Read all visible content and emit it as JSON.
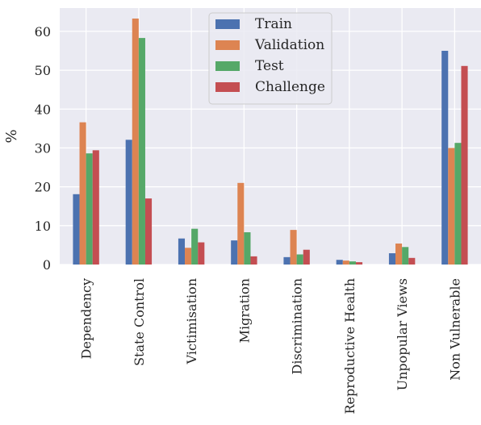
{
  "chart_data": {
    "type": "bar",
    "ylabel": "%",
    "xlabel": "",
    "ylim": [
      0,
      66
    ],
    "yticks": [
      0,
      10,
      20,
      30,
      40,
      50,
      60
    ],
    "grid": true,
    "legend_position": "top-center",
    "categories": [
      "Dependency",
      "State Control",
      "Victimisation",
      "Migration",
      "Discrimination",
      "Reproductive Health",
      "Unpopular Views",
      "Non Vulnerable"
    ],
    "series": [
      {
        "name": "Train",
        "color": "#4c72b0",
        "values": [
          18.1,
          32.1,
          6.7,
          6.2,
          1.9,
          1.2,
          2.9,
          55.0
        ]
      },
      {
        "name": "Validation",
        "color": "#dd8452",
        "values": [
          36.6,
          63.3,
          4.3,
          21.0,
          8.9,
          1.0,
          5.4,
          30.0
        ]
      },
      {
        "name": "Test",
        "color": "#55a868",
        "values": [
          28.6,
          58.3,
          9.2,
          8.3,
          2.6,
          0.8,
          4.5,
          31.3
        ]
      },
      {
        "name": "Challenge",
        "color": "#c44e52",
        "values": [
          29.4,
          17.0,
          5.7,
          2.1,
          3.8,
          0.6,
          1.7,
          51.1
        ]
      }
    ]
  }
}
